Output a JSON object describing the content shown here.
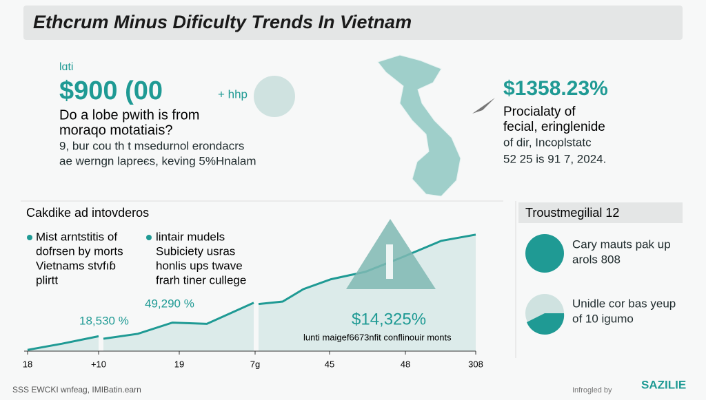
{
  "header": {
    "title": "Ethcrum Minus Dificulty Trends In Vietnam"
  },
  "hero": {
    "kicker": "lɑti",
    "figure": "$900 (00",
    "figure_note": "+ hhp",
    "question": [
      "Do a lobe pwith is from",
      "moraqo motatiais?"
    ],
    "description": [
      "9, bur cou th t msedurnol erondacrs",
      "ae werngn lapreєs, keving 5%Hnalam"
    ]
  },
  "map_panel": {
    "figure": "$1358.23%",
    "heading": [
      "Procialaty of",
      "fecial, eringlenide"
    ],
    "lines": [
      "of dir, Incoplstatc",
      "52 25 is 91 7, 2024."
    ]
  },
  "section": {
    "title": "Cakdike ad intovderos",
    "bullets_left": [
      "Mist arntstitis of",
      "dofrsen by morts",
      "Vietnams stvfıɓ",
      "plirtt"
    ],
    "bullets_right": [
      "lintair mudels",
      "Subiciety usras",
      "honlis ups twave",
      "frarh tiner culleɡe"
    ],
    "annotations": [
      "18,530 %",
      "49,290 %",
      "$14,325%"
    ],
    "footnote": "lunti maigef6673nfit conflinouir monts"
  },
  "chart_data": {
    "type": "area",
    "x": [
      0,
      50,
      103,
      106,
      110,
      160,
      210,
      260,
      300,
      328,
      332,
      335,
      370,
      400,
      440,
      490,
      540,
      600,
      650
    ],
    "values": [
      1,
      6,
      12,
      null,
      10,
      14,
      23,
      22,
      32,
      39,
      null,
      38,
      40,
      50,
      58,
      64,
      75,
      89,
      94
    ],
    "xlim": [
      0,
      650
    ],
    "ylim": [
      0,
      100
    ],
    "xticks": [
      {
        "value": 0,
        "label": "18"
      },
      {
        "value": 103,
        "label": "+10"
      },
      {
        "value": 220,
        "label": "19"
      },
      {
        "value": 330,
        "label": "7g"
      },
      {
        "value": 438,
        "label": "45"
      },
      {
        "value": 548,
        "label": "48"
      },
      {
        "value": 650,
        "label": "308"
      }
    ],
    "color": "#1f9a94"
  },
  "side_panel": {
    "title": "Troustmegilial 12",
    "items": [
      [
        "Cary mauts pak up",
        "arols 808"
      ],
      [
        "Unidle cor bas yeup",
        "of 10 igumo"
      ]
    ]
  },
  "footer": {
    "source": "SSS EWCKI wnfeag, IMIBatin.earn",
    "credit": "Infrogled by",
    "brand": "SAZILIE"
  }
}
